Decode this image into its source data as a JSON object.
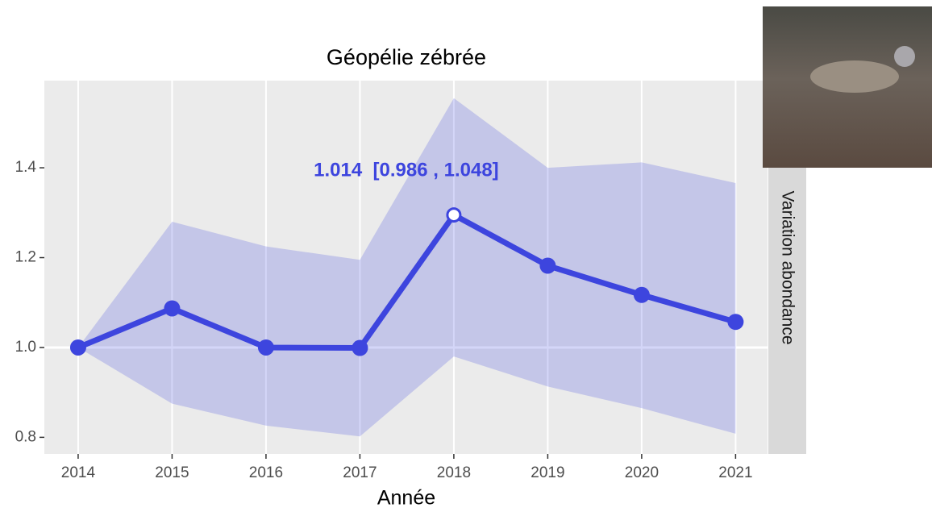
{
  "chart_data": {
    "type": "line",
    "title": "Géopélie zébrée",
    "x_label": "Année",
    "strip_label": "Variation abondance",
    "x": [
      2014,
      2015,
      2016,
      2017,
      2018,
      2019,
      2020,
      2021
    ],
    "series": [
      {
        "color": "#3d45de",
        "values": [
          1.0,
          1.087,
          1.0,
          0.999,
          1.295,
          1.182,
          1.117,
          1.057
        ],
        "lower": [
          1.0,
          0.875,
          0.826,
          0.802,
          0.98,
          0.913,
          0.865,
          0.808
        ],
        "upper": [
          1.0,
          1.28,
          1.225,
          1.195,
          1.555,
          1.4,
          1.412,
          1.366
        ]
      }
    ],
    "highlight": 2018,
    "annotation": "1.014  [0.986 , 1.048]",
    "reference_line": 1,
    "xlim": [
      2013.64,
      2021.34
    ],
    "ylim": [
      0.763,
      1.594
    ],
    "xticks": [
      2014,
      2015,
      2016,
      2017,
      2018,
      2019,
      2020,
      2021
    ],
    "yticks": [
      0.8,
      {
        "value": 1,
        "label": "1.0"
      },
      1.2,
      1.4
    ],
    "grid": true
  }
}
